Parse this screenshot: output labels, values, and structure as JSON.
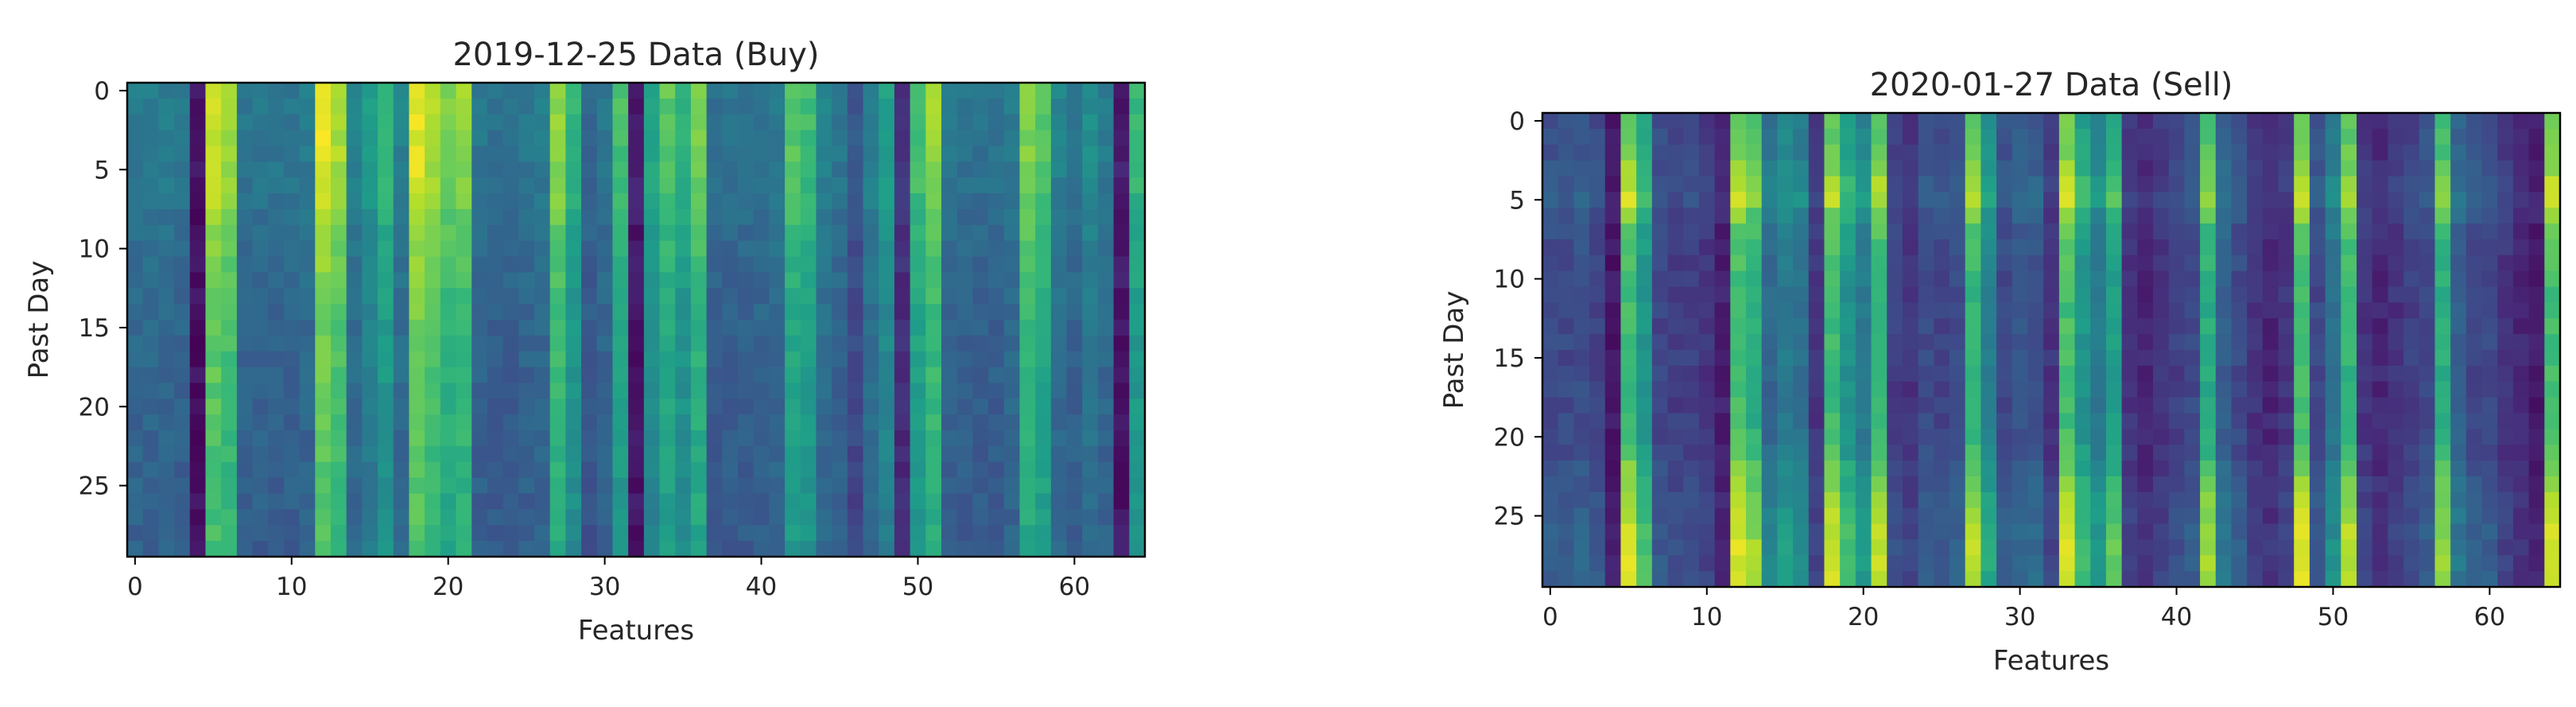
{
  "chart_data": [
    {
      "type": "heatmap",
      "title": "2019-12-25 Data (Buy)",
      "xlabel": "Features",
      "ylabel": "Past Day",
      "n_cols": 65,
      "n_rows": 30,
      "xticks": [
        0,
        10,
        20,
        30,
        40,
        50,
        60
      ],
      "yticks": [
        0,
        5,
        10,
        15,
        20,
        25
      ],
      "colormap": "viridis",
      "value_range": [
        0,
        1
      ],
      "column_profile": [
        0.42,
        0.42,
        0.42,
        0.4,
        0.05,
        0.95,
        0.88,
        0.4,
        0.4,
        0.4,
        0.4,
        0.42,
        0.98,
        0.9,
        0.45,
        0.55,
        0.68,
        0.45,
        0.98,
        0.9,
        0.82,
        0.85,
        0.4,
        0.38,
        0.38,
        0.4,
        0.42,
        0.85,
        0.65,
        0.35,
        0.4,
        0.72,
        0.08,
        0.6,
        0.75,
        0.65,
        0.8,
        0.38,
        0.38,
        0.38,
        0.4,
        0.42,
        0.75,
        0.7,
        0.45,
        0.4,
        0.28,
        0.45,
        0.58,
        0.15,
        0.72,
        0.85,
        0.4,
        0.38,
        0.38,
        0.38,
        0.42,
        0.82,
        0.75,
        0.45,
        0.4,
        0.5,
        0.42,
        0.08,
        0.68
      ],
      "row_profile": [
        1.0,
        0.98,
        0.96,
        0.95,
        0.94,
        0.93,
        0.9,
        0.86,
        0.8,
        0.74,
        0.7,
        0.66,
        0.63,
        0.6,
        0.58,
        0.56,
        0.54,
        0.53,
        0.52,
        0.5,
        0.49,
        0.48,
        0.47,
        0.46,
        0.45,
        0.44,
        0.43,
        0.42,
        0.41,
        0.4
      ],
      "grid": false
    },
    {
      "type": "heatmap",
      "title": "2020-01-27 Data (Sell)",
      "xlabel": "Features",
      "ylabel": "Past Day",
      "n_cols": 65,
      "n_rows": 30,
      "xticks": [
        0,
        10,
        20,
        30,
        40,
        50,
        60
      ],
      "yticks": [
        0,
        5,
        10,
        15,
        20,
        25
      ],
      "colormap": "viridis",
      "value_range": [
        0,
        1
      ],
      "column_profile": [
        0.3,
        0.3,
        0.32,
        0.28,
        0.08,
        0.95,
        0.7,
        0.28,
        0.25,
        0.25,
        0.2,
        0.12,
        0.95,
        0.85,
        0.45,
        0.55,
        0.5,
        0.2,
        0.92,
        0.7,
        0.55,
        0.9,
        0.25,
        0.2,
        0.3,
        0.28,
        0.3,
        0.9,
        0.6,
        0.3,
        0.35,
        0.35,
        0.2,
        0.95,
        0.7,
        0.55,
        0.75,
        0.2,
        0.15,
        0.2,
        0.25,
        0.3,
        0.85,
        0.4,
        0.3,
        0.2,
        0.15,
        0.2,
        0.95,
        0.3,
        0.5,
        0.9,
        0.2,
        0.15,
        0.2,
        0.25,
        0.3,
        0.85,
        0.4,
        0.3,
        0.3,
        0.2,
        0.15,
        0.1,
        0.95
      ],
      "row_profile": [
        0.6,
        0.62,
        0.65,
        0.75,
        0.9,
        0.95,
        0.7,
        0.55,
        0.5,
        0.45,
        0.42,
        0.4,
        0.4,
        0.42,
        0.42,
        0.4,
        0.38,
        0.38,
        0.4,
        0.42,
        0.45,
        0.5,
        0.65,
        0.75,
        0.85,
        0.9,
        0.95,
        1.0,
        1.0,
        1.0
      ],
      "grid": false
    }
  ]
}
